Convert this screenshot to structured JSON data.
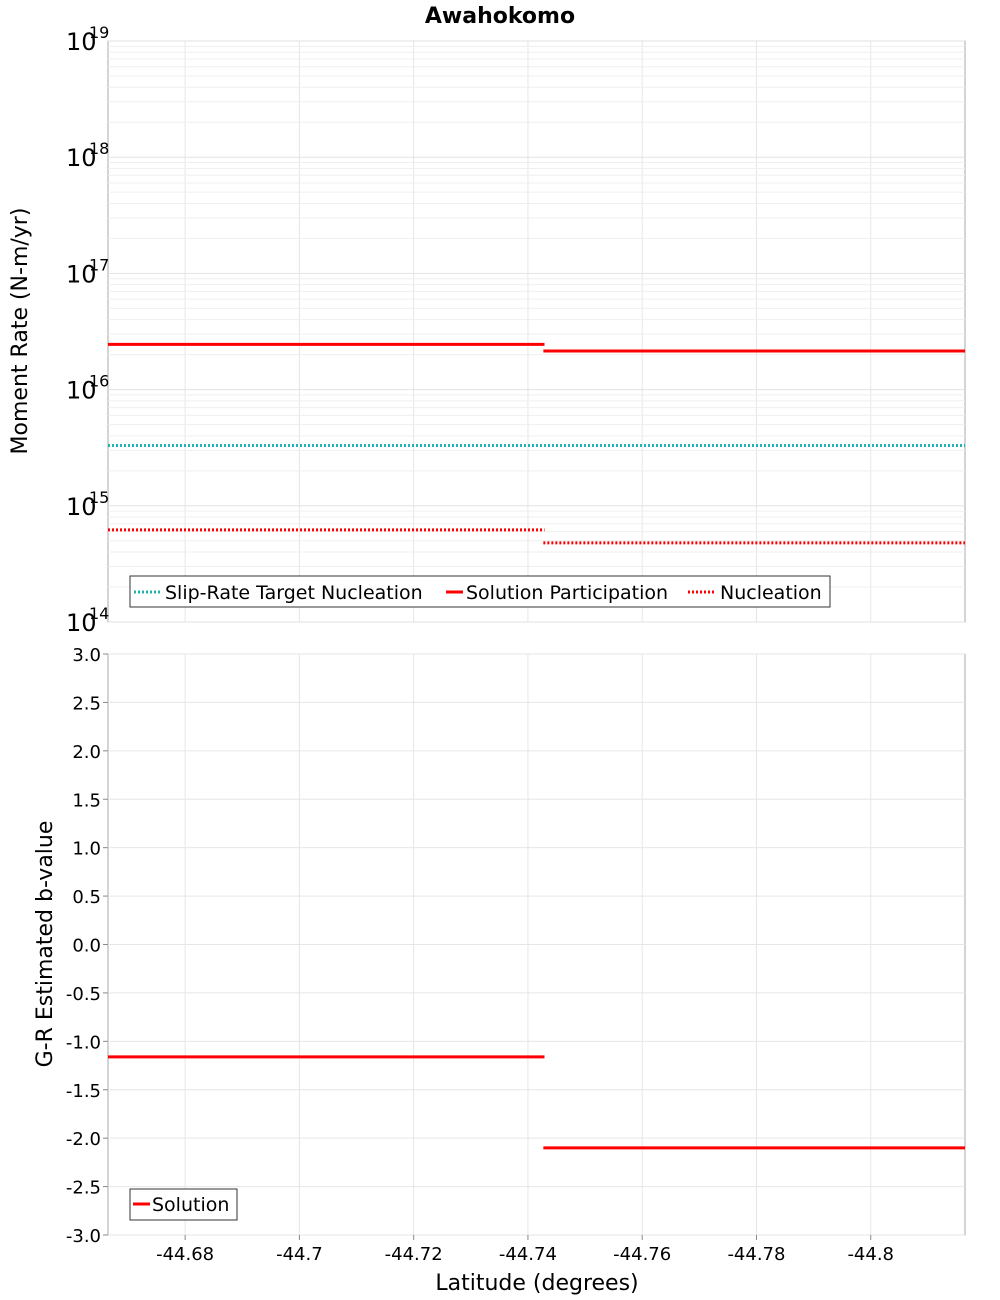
{
  "chart_data": [
    {
      "type": "line",
      "title": "Awahokomo",
      "ylabel": "Moment Rate (N-m/yr)",
      "xlabel": "Latitude (degrees)",
      "y_scale": "log",
      "ylim_exponents": [
        14,
        19
      ],
      "y_tick_base": "10",
      "y_tick_exponents": [
        "14",
        "15",
        "16",
        "17",
        "18",
        "19"
      ],
      "xlim": [
        -44.6665,
        -44.8165
      ],
      "series": [
        {
          "name": "Slip-Rate Target Nucleation",
          "color": "#1fb5b5",
          "style": "dotted",
          "segments": [
            {
              "x": [
                -44.6665,
                -44.8165
              ],
              "y": 3300000000000000.0
            }
          ]
        },
        {
          "name": "Solution Participation",
          "color": "#ff0000",
          "style": "solid",
          "segments": [
            {
              "x": [
                -44.6665,
                -44.7429
              ],
              "y": 2.45e+16
            },
            {
              "x": [
                -44.7427,
                -44.8165
              ],
              "y": 2.15e+16
            }
          ]
        },
        {
          "name": "Nucleation",
          "color": "#ff0000",
          "style": "dotted",
          "segments": [
            {
              "x": [
                -44.6665,
                -44.7429
              ],
              "y": 620000000000000.0
            },
            {
              "x": [
                -44.7427,
                -44.8165
              ],
              "y": 480000000000000.0
            }
          ]
        }
      ],
      "legend_position": "bottom-left"
    },
    {
      "type": "line",
      "ylabel": "G-R Estimated b-value",
      "xlabel": "Latitude (degrees)",
      "ylim": [
        -3.0,
        3.0
      ],
      "y_ticks": [
        "3.0",
        "2.5",
        "2.0",
        "1.5",
        "1.0",
        "0.5",
        "0.0",
        "-0.5",
        "-1.0",
        "-1.5",
        "-2.0",
        "-2.5",
        "-3.0"
      ],
      "y_tick_values": [
        3.0,
        2.5,
        2.0,
        1.5,
        1.0,
        0.5,
        0.0,
        -0.5,
        -1.0,
        -1.5,
        -2.0,
        -2.5,
        -3.0
      ],
      "xlim": [
        -44.6665,
        -44.8165
      ],
      "x_ticks": [
        "-44.68",
        "-44.7",
        "-44.72",
        "-44.74",
        "-44.76",
        "-44.78",
        "-44.8"
      ],
      "x_tick_values": [
        -44.68,
        -44.7,
        -44.72,
        -44.74,
        -44.76,
        -44.78,
        -44.8
      ],
      "series": [
        {
          "name": "Solution",
          "color": "#ff0000",
          "style": "solid",
          "segments": [
            {
              "x": [
                -44.6665,
                -44.7429
              ],
              "y": -1.16
            },
            {
              "x": [
                -44.7427,
                -44.8165
              ],
              "y": -2.1
            }
          ]
        }
      ],
      "legend_position": "bottom-left"
    }
  ]
}
